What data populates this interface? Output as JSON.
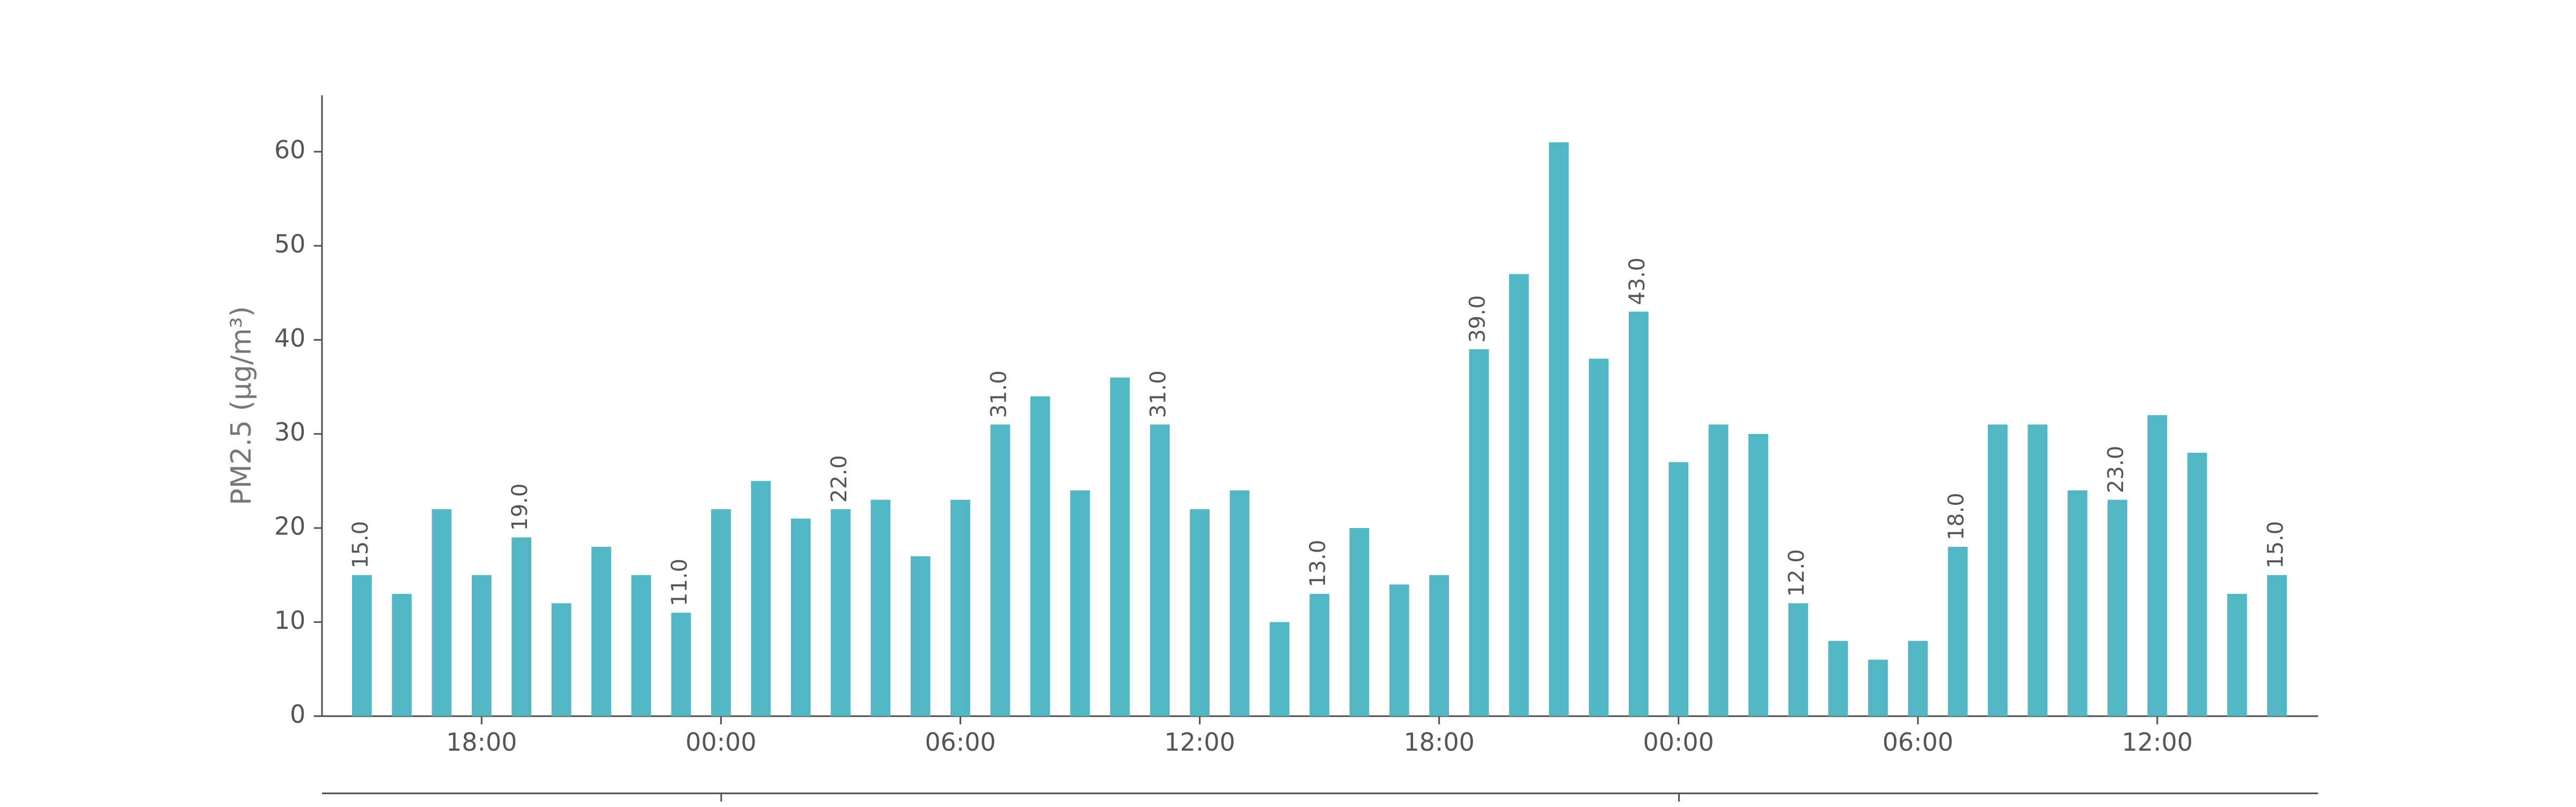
{
  "chart_data": {
    "type": "bar",
    "y_label": "PM2.5 (μg/m³)",
    "categories": [
      null,
      null,
      null,
      "18:00",
      null,
      null,
      null,
      null,
      null,
      "00:00",
      null,
      null,
      null,
      null,
      null,
      "06:00",
      null,
      null,
      null,
      null,
      null,
      "12:00",
      null,
      null,
      null,
      null,
      null,
      "18:00",
      null,
      null,
      null,
      null,
      null,
      "00:00",
      null,
      null,
      null,
      null,
      null,
      "06:00",
      null,
      null,
      null,
      null,
      null,
      "12:00",
      null,
      null,
      null
    ],
    "values": [
      15,
      13,
      22,
      15,
      19,
      12,
      18,
      15,
      11,
      22,
      25,
      21,
      22,
      23,
      17,
      23,
      31,
      34,
      24,
      36,
      31,
      22,
      24,
      10,
      13,
      20,
      14,
      15,
      39,
      47,
      61,
      38,
      43,
      27,
      31,
      30,
      12,
      8,
      6,
      8,
      18,
      31,
      31,
      24,
      23,
      32,
      28,
      13,
      15
    ],
    "value_labels": [
      "15.0",
      null,
      null,
      null,
      "19.0",
      null,
      null,
      null,
      "11.0",
      null,
      null,
      null,
      "22.0",
      null,
      null,
      null,
      "31.0",
      null,
      null,
      null,
      "31.0",
      null,
      null,
      null,
      "13.0",
      null,
      null,
      null,
      "39.0",
      null,
      null,
      null,
      "43.0",
      null,
      null,
      null,
      "12.0",
      null,
      null,
      null,
      "18.0",
      null,
      null,
      null,
      "23.0",
      null,
      null,
      null,
      "15.0"
    ],
    "color": "#52b6c4",
    "ylim": [
      0,
      66
    ],
    "yticks": [
      0,
      10,
      20,
      30,
      40,
      50,
      60
    ],
    "grid": false
  }
}
